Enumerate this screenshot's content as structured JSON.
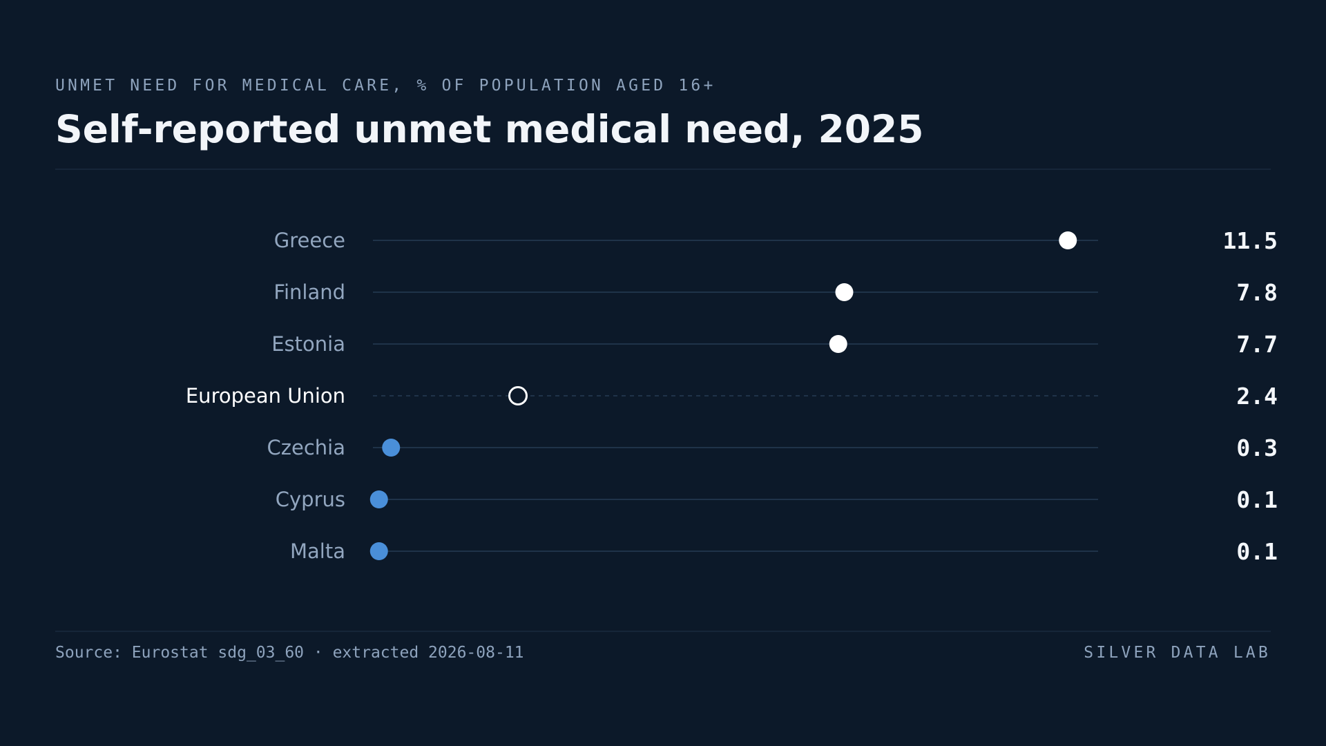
{
  "header": {
    "eyebrow": "UNMET NEED FOR MEDICAL CARE, % OF POPULATION AGED 16+",
    "title": "Self-reported unmet medical need, 2025"
  },
  "footer": {
    "source": "Source: Eurostat sdg_03_60 · extracted 2026-08-11",
    "brand": "SILVER DATA LAB"
  },
  "colors": {
    "background": "#0c1929",
    "high": "#ffffff",
    "low": "#4a8fd9",
    "reference": "#ffffff",
    "track": "#1f3349"
  },
  "chart_data": {
    "type": "dot",
    "xlim": [
      0,
      13
    ],
    "grid": false,
    "legend": "none",
    "rows": [
      {
        "label": "Greece",
        "value": 11.5,
        "value_label": "11.5",
        "group": "high"
      },
      {
        "label": "Finland",
        "value": 7.8,
        "value_label": "7.8",
        "group": "high"
      },
      {
        "label": "Estonia",
        "value": 7.7,
        "value_label": "7.7",
        "group": "high"
      },
      {
        "label": "European Union",
        "value": 2.4,
        "value_label": "2.4",
        "group": "reference"
      },
      {
        "label": "Czechia",
        "value": 0.3,
        "value_label": "0.3",
        "group": "low"
      },
      {
        "label": "Cyprus",
        "value": 0.1,
        "value_label": "0.1",
        "group": "low"
      },
      {
        "label": "Malta",
        "value": 0.1,
        "value_label": "0.1",
        "group": "low"
      }
    ]
  }
}
